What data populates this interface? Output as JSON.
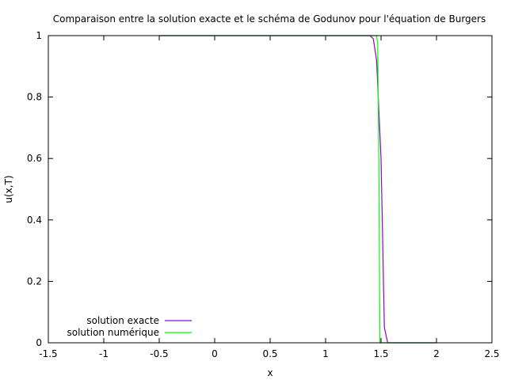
{
  "chart_data": {
    "type": "line",
    "title": "Comparaison entre la solution exacte et le schéma de Godunov pour l'équation de Burgers",
    "xlabel": "x",
    "ylabel": "u(x,T)",
    "xlim": [
      -1.5,
      2.5
    ],
    "ylim": [
      0,
      1
    ],
    "xticks": [
      -1.5,
      -1,
      -0.5,
      0,
      0.5,
      1,
      1.5,
      2,
      2.5
    ],
    "xtick_labels": [
      "-1.5",
      "-1",
      "-0.5",
      "0",
      "0.5",
      "1",
      "1.5",
      "2",
      "2.5"
    ],
    "yticks": [
      0,
      0.2,
      0.4,
      0.6,
      0.8,
      1
    ],
    "ytick_labels": [
      "0",
      "0.2",
      "0.4",
      "0.6",
      "0.8",
      "1"
    ],
    "grid": false,
    "legend_position": "bottom-left",
    "series": [
      {
        "name": "solution exacte",
        "color": "#9400d3",
        "x": [
          -0.5,
          1.4,
          1.43,
          1.46,
          1.5,
          1.53,
          1.56,
          2.0
        ],
        "y": [
          1,
          1,
          0.99,
          0.92,
          0.6,
          0.05,
          0,
          0
        ]
      },
      {
        "name": "solution numérique",
        "color": "#00ff00",
        "x": [
          -0.5,
          1.46,
          1.47,
          1.48,
          1.49,
          2.0
        ],
        "y": [
          1,
          1,
          0.97,
          0.6,
          0,
          0
        ]
      }
    ]
  }
}
